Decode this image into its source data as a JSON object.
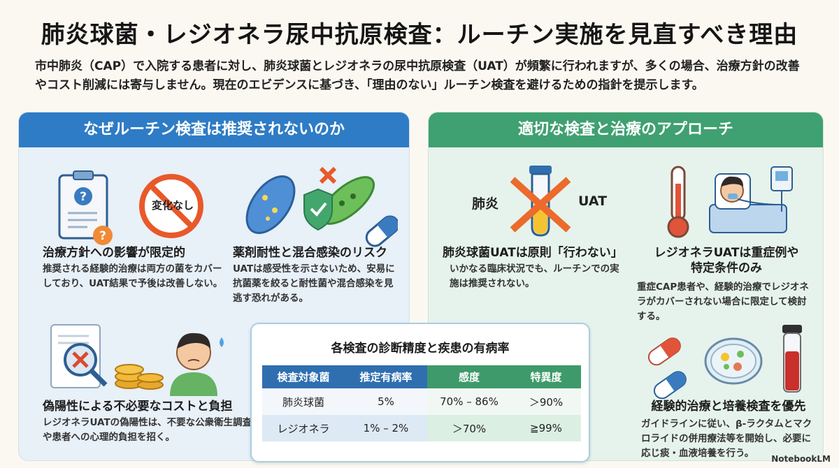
{
  "title": "肺炎球菌・レジオネラ尿中抗原検査：ルーチン実施を見直すべき理由",
  "intro": "市中肺炎（CAP）で入院する患者に対し、肺炎球菌とレジオネラの尿中抗原検査（UAT）が頻繁に行われますが、多くの場合、治療方針の改善やコスト削減には寄与しません。現在のエビデンスに基づき、「理由のない」ルーチン検査を避けるための指針を提示します。",
  "left_panel": {
    "header": "なぜルーチン検査は推奨されないのか",
    "items": [
      {
        "title": "治療方針への影響が限定的",
        "body": "推奨される経験的治療は両方の菌をカバーしており、UAT結果で予後は改善しない。",
        "icon_label": "変化なし",
        "icons": [
          "clipboard-question-icon",
          "no-change-icon"
        ]
      },
      {
        "title": "薬剤耐性と混合感染のリスク",
        "body": "UATは感受性を示さないため、安易に抗菌薬を絞ると耐性菌や混合感染を見逃す恐れがある。",
        "icons": [
          "bacteria-icon",
          "shield-check-icon",
          "capsule-icon"
        ]
      },
      {
        "title": "偽陽性による不必要なコストと負担",
        "body": "レジオネラUATの偽陽性は、不要な公衆衛生調査や患者への心理的負担を招く。",
        "icons": [
          "document-magnifier-icon",
          "coins-icon",
          "worried-person-icon"
        ]
      }
    ]
  },
  "right_panel": {
    "header": "適切な検査と治療のアプローチ",
    "items": [
      {
        "title": "肺炎球菌UATは原則「行わない」",
        "body": "いかなる臨床状況でも、ルーチンでの実施は推奨されない。",
        "icon_label_left": "肺炎",
        "icon_label_right": "UAT",
        "icons": [
          "crossed-test-tube-icon"
        ]
      },
      {
        "title_line1": "レジオネラUATは重症例や",
        "title_line2": "特定条件のみ",
        "body": "重症CAP患者や、経験的治療でレジオネラがカバーされない場合に限定して検討する。",
        "icons": [
          "thermometer-icon",
          "hospital-patient-icon"
        ]
      },
      {
        "title": "経験的治療と培養検査を優先",
        "body": "ガイドラインに従い、β-ラクタムとマクロライドの併用療法等を開始し、必要に応じ痰・血液培養を行う。",
        "icons": [
          "capsules-icon",
          "petri-dish-icon",
          "blood-culture-tube-icon"
        ]
      }
    ]
  },
  "table": {
    "title": "各検査の診断精度と疾患の有病率",
    "headers": [
      "検査対象菌",
      "推定有病率",
      "感度",
      "特異度"
    ],
    "rows": [
      [
        "肺炎球菌",
        "5%",
        "70% – 86%",
        "＞90%"
      ],
      [
        "レジオネラ",
        "1% – 2%",
        "＞70%",
        "≧99%"
      ]
    ]
  },
  "footer": "NotebookLM",
  "colors": {
    "blue": "#2e7cc5",
    "green": "#3fa071",
    "orange_cross": "#ec6a2c"
  }
}
